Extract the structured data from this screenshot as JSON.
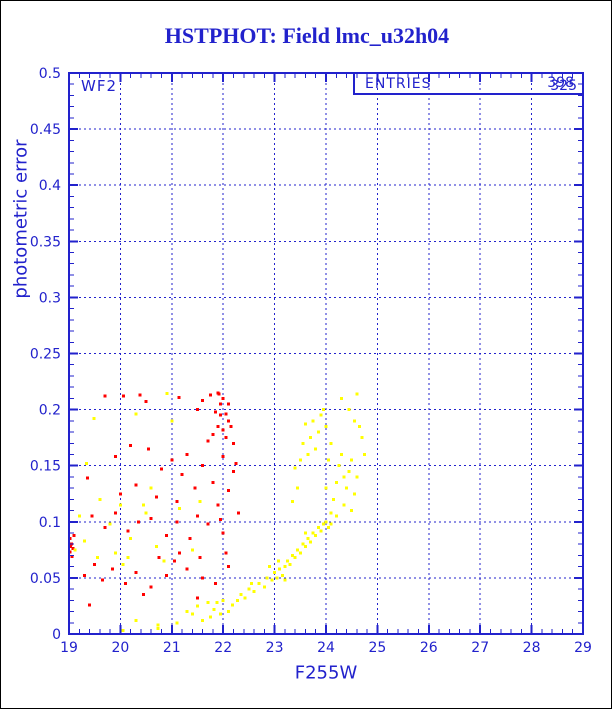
{
  "window": {
    "title": "HSTPHOT: Field lmc_u32h04"
  },
  "colors": {
    "axis": "#2222CC",
    "title": "#2222CC",
    "red_series": "#FF0000",
    "yellow_series": "#FFFF00",
    "background": "#FFFFFF",
    "page_border": "#000000"
  },
  "chart_data": {
    "type": "scatter",
    "title": "HSTPHOT: Field lmc_u32h04",
    "xlabel": "F255W",
    "ylabel": "photometric error",
    "xlim": [
      19,
      29
    ],
    "ylim": [
      0,
      0.5
    ],
    "grid": "dashed lines at every major tick, both axes",
    "legend": "none",
    "x_ticks": [
      {
        "value": 19,
        "label": "19"
      },
      {
        "value": 20,
        "label": "20"
      },
      {
        "value": 21,
        "label": "21"
      },
      {
        "value": 22,
        "label": "22"
      },
      {
        "value": 23,
        "label": "23"
      },
      {
        "value": 24,
        "label": "24"
      },
      {
        "value": 25,
        "label": "25"
      },
      {
        "value": 26,
        "label": "26"
      },
      {
        "value": 27,
        "label": "27"
      },
      {
        "value": 28,
        "label": "28"
      },
      {
        "value": 29,
        "label": "29"
      }
    ],
    "y_ticks": [
      {
        "value": 0,
        "label": "0"
      },
      {
        "value": 0.05,
        "label": "0.05"
      },
      {
        "value": 0.1,
        "label": "0.1"
      },
      {
        "value": 0.15,
        "label": "0.15"
      },
      {
        "value": 0.2,
        "label": "0.2"
      },
      {
        "value": 0.25,
        "label": "0.25"
      },
      {
        "value": 0.3,
        "label": "0.3"
      },
      {
        "value": 0.35,
        "label": "0.35"
      },
      {
        "value": 0.4,
        "label": "0.4"
      },
      {
        "value": 0.45,
        "label": "0.45"
      },
      {
        "value": 0.5,
        "label": "0.5"
      }
    ],
    "x_minor_step": 0.2,
    "y_minor_step": 0.01,
    "annotations": {
      "detector_label": "WF2",
      "stats_box": {
        "label": "ENTRIES",
        "values": [
          "398",
          "325"
        ]
      }
    },
    "series": [
      {
        "name": "red-points",
        "color": "#FF0000",
        "points": [
          [
            21.75,
            0.213
          ],
          [
            21.9,
            0.215
          ],
          [
            21.95,
            0.205
          ],
          [
            22.0,
            0.21
          ],
          [
            21.85,
            0.198
          ],
          [
            21.95,
            0.195
          ],
          [
            22.05,
            0.196
          ],
          [
            22.1,
            0.19
          ],
          [
            21.9,
            0.185
          ],
          [
            22.0,
            0.182
          ],
          [
            22.15,
            0.185
          ],
          [
            21.8,
            0.178
          ],
          [
            22.05,
            0.175
          ],
          [
            21.7,
            0.172
          ],
          [
            22.2,
            0.17
          ],
          [
            21.6,
            0.208
          ],
          [
            21.5,
            0.2
          ],
          [
            22.1,
            0.205
          ],
          [
            19.7,
            0.212
          ],
          [
            20.06,
            0.212
          ],
          [
            20.38,
            0.213
          ],
          [
            21.14,
            0.211
          ],
          [
            20.5,
            0.207
          ],
          [
            21.92,
            0.214
          ],
          [
            19.36,
            0.139
          ],
          [
            20.2,
            0.168
          ],
          [
            20.55,
            0.165
          ],
          [
            21.0,
            0.155
          ],
          [
            21.3,
            0.16
          ],
          [
            20.8,
            0.147
          ],
          [
            21.6,
            0.15
          ],
          [
            22.0,
            0.158
          ],
          [
            21.2,
            0.142
          ],
          [
            20.3,
            0.133
          ],
          [
            21.45,
            0.13
          ],
          [
            21.8,
            0.135
          ],
          [
            22.1,
            0.128
          ],
          [
            20.0,
            0.125
          ],
          [
            20.7,
            0.122
          ],
          [
            21.1,
            0.118
          ],
          [
            21.9,
            0.115
          ],
          [
            22.2,
            0.145
          ],
          [
            19.9,
            0.158
          ],
          [
            22.25,
            0.152
          ],
          [
            20.6,
            0.103
          ],
          [
            21.1,
            0.1
          ],
          [
            21.5,
            0.105
          ],
          [
            19.7,
            0.095
          ],
          [
            20.15,
            0.092
          ],
          [
            20.9,
            0.088
          ],
          [
            21.35,
            0.085
          ],
          [
            22.0,
            0.09
          ],
          [
            21.7,
            0.098
          ],
          [
            19.02,
            0.085
          ],
          [
            19.05,
            0.08
          ],
          [
            19.08,
            0.076
          ],
          [
            19.02,
            0.073
          ],
          [
            19.1,
            0.088
          ],
          [
            19.06,
            0.069
          ],
          [
            19.03,
            0.078
          ],
          [
            19.5,
            0.062
          ],
          [
            19.85,
            0.058
          ],
          [
            20.3,
            0.055
          ],
          [
            20.9,
            0.052
          ],
          [
            21.3,
            0.058
          ],
          [
            21.6,
            0.05
          ],
          [
            20.1,
            0.045
          ],
          [
            20.6,
            0.042
          ],
          [
            21.05,
            0.065
          ],
          [
            19.4,
            0.026
          ],
          [
            20.45,
            0.035
          ],
          [
            21.5,
            0.032
          ],
          [
            19.65,
            0.048
          ],
          [
            22.1,
            0.06
          ],
          [
            21.85,
            0.045
          ],
          [
            19.45,
            0.105
          ],
          [
            19.9,
            0.108
          ],
          [
            20.35,
            0.1
          ],
          [
            21.95,
            0.102
          ],
          [
            22.3,
            0.108
          ],
          [
            20.75,
            0.068
          ],
          [
            21.15,
            0.072
          ],
          [
            21.55,
            0.068
          ],
          [
            22.05,
            0.072
          ],
          [
            19.3,
            0.052
          ]
        ]
      },
      {
        "name": "yellow-points",
        "color": "#FFFF00",
        "points": [
          [
            20.3,
            0.196
          ],
          [
            20.91,
            0.2145
          ],
          [
            21.0,
            0.19
          ],
          [
            19.49,
            0.192
          ],
          [
            19.34,
            0.152
          ],
          [
            19.6,
            0.12
          ],
          [
            20.0,
            0.115
          ],
          [
            19.2,
            0.105
          ],
          [
            20.5,
            0.108
          ],
          [
            19.8,
            0.098
          ],
          [
            20.2,
            0.085
          ],
          [
            19.12,
            0.075
          ],
          [
            20.7,
            0.078
          ],
          [
            19.55,
            0.068
          ],
          [
            20.05,
            0.062
          ],
          [
            20.45,
            0.115
          ],
          [
            19.3,
            0.083
          ],
          [
            19.9,
            0.072
          ],
          [
            20.15,
            0.068
          ],
          [
            21.15,
            0.112
          ],
          [
            20.85,
            0.065
          ],
          [
            21.4,
            0.075
          ],
          [
            20.6,
            0.13
          ],
          [
            21.55,
            0.118
          ],
          [
            20.05,
            0.003
          ],
          [
            20.73,
            0.005
          ],
          [
            20.73,
            0.008
          ],
          [
            21.1,
            0.01
          ],
          [
            21.4,
            0.018
          ],
          [
            21.6,
            0.012
          ],
          [
            21.75,
            0.015
          ],
          [
            21.82,
            0.022
          ],
          [
            21.88,
            0.028
          ],
          [
            21.95,
            0.018
          ],
          [
            22.1,
            0.02
          ],
          [
            22.18,
            0.026
          ],
          [
            22.28,
            0.03
          ],
          [
            21.5,
            0.025
          ],
          [
            21.3,
            0.02
          ],
          [
            22.0,
            0.03
          ],
          [
            21.7,
            0.028
          ],
          [
            20.3,
            0.012
          ],
          [
            22.35,
            0.035
          ],
          [
            22.5,
            0.04
          ],
          [
            22.6,
            0.038
          ],
          [
            22.7,
            0.045
          ],
          [
            22.8,
            0.042
          ],
          [
            22.85,
            0.05
          ],
          [
            22.95,
            0.048
          ],
          [
            23.0,
            0.055
          ],
          [
            23.05,
            0.05
          ],
          [
            23.1,
            0.058
          ],
          [
            23.15,
            0.052
          ],
          [
            23.2,
            0.06
          ],
          [
            23.25,
            0.065
          ],
          [
            23.3,
            0.062
          ],
          [
            23.35,
            0.07
          ],
          [
            23.4,
            0.068
          ],
          [
            23.45,
            0.075
          ],
          [
            23.5,
            0.072
          ],
          [
            23.55,
            0.08
          ],
          [
            23.6,
            0.078
          ],
          [
            23.65,
            0.085
          ],
          [
            23.7,
            0.082
          ],
          [
            23.75,
            0.09
          ],
          [
            23.8,
            0.088
          ],
          [
            23.85,
            0.095
          ],
          [
            23.9,
            0.092
          ],
          [
            23.95,
            0.098
          ],
          [
            24.0,
            0.1
          ],
          [
            23.2,
            0.048
          ],
          [
            22.9,
            0.06
          ],
          [
            23.6,
            0.09
          ],
          [
            24.05,
            0.095
          ],
          [
            22.42,
            0.032
          ],
          [
            22.55,
            0.045
          ],
          [
            23.08,
            0.065
          ],
          [
            24.1,
            0.098
          ],
          [
            23.4,
            0.148
          ],
          [
            23.5,
            0.155
          ],
          [
            23.55,
            0.17
          ],
          [
            23.6,
            0.187
          ],
          [
            23.65,
            0.16
          ],
          [
            23.7,
            0.175
          ],
          [
            23.75,
            0.19
          ],
          [
            23.8,
            0.165
          ],
          [
            23.85,
            0.18
          ],
          [
            23.9,
            0.195
          ],
          [
            23.95,
            0.2
          ],
          [
            24.0,
            0.185
          ],
          [
            24.05,
            0.155
          ],
          [
            24.1,
            0.17
          ],
          [
            24.15,
            0.12
          ],
          [
            24.2,
            0.135
          ],
          [
            24.25,
            0.15
          ],
          [
            24.3,
            0.16
          ],
          [
            24.35,
            0.14
          ],
          [
            24.4,
            0.13
          ],
          [
            24.45,
            0.145
          ],
          [
            24.5,
            0.155
          ],
          [
            24.55,
            0.125
          ],
          [
            24.6,
            0.214
          ],
          [
            24.65,
            0.185
          ],
          [
            24.7,
            0.175
          ],
          [
            24.45,
            0.2
          ],
          [
            24.3,
            0.21
          ],
          [
            24.5,
            0.11
          ],
          [
            24.2,
            0.105
          ],
          [
            24.35,
            0.115
          ],
          [
            24.6,
            0.14
          ],
          [
            24.75,
            0.16
          ],
          [
            24.55,
            0.19
          ],
          [
            24.0,
            0.13
          ],
          [
            24.1,
            0.108
          ],
          [
            23.45,
            0.13
          ],
          [
            23.35,
            0.118
          ]
        ]
      }
    ]
  }
}
